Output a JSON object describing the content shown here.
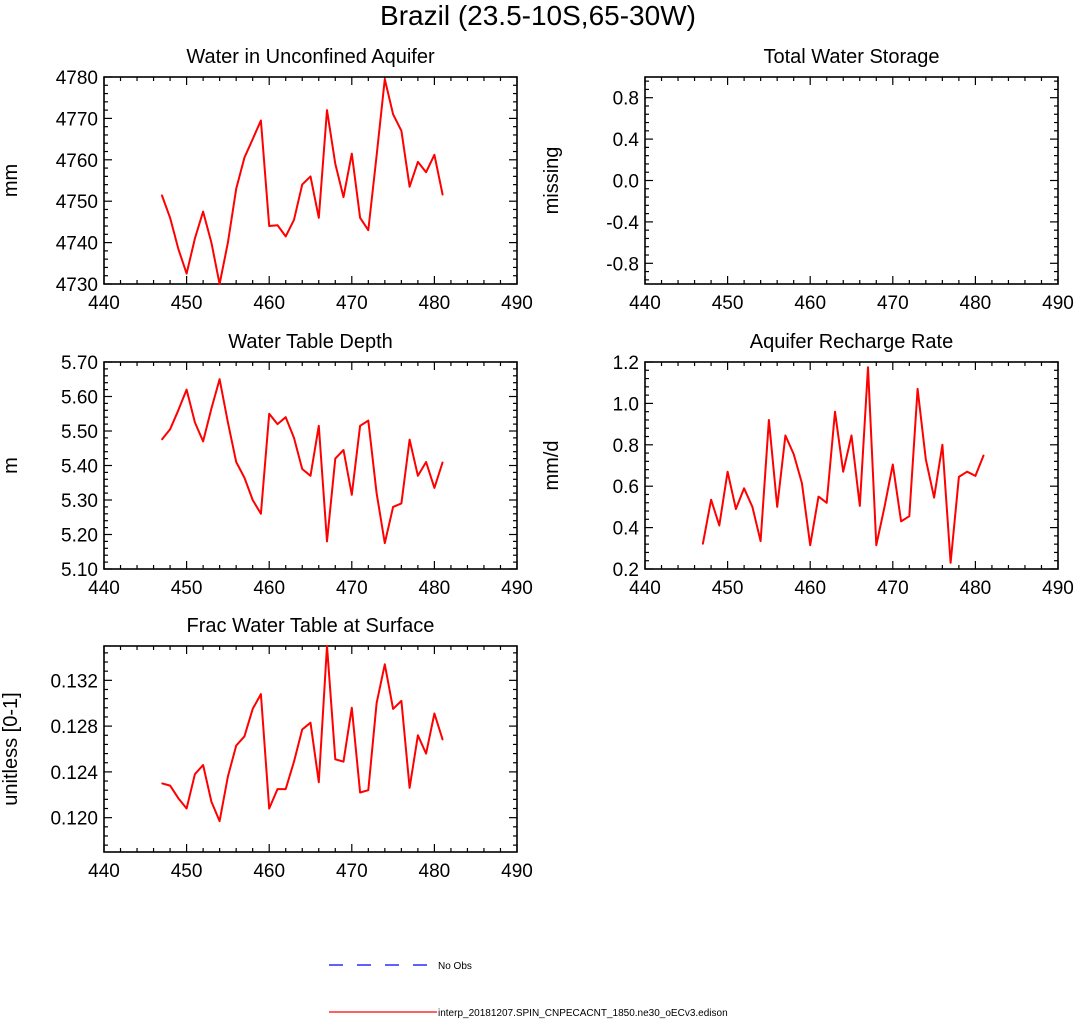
{
  "main_title": "Brazil (23.5-10S,65-30W)",
  "colors": {
    "model": "#ff0000",
    "obs": "#0000ff",
    "axis": "#000000"
  },
  "legend": [
    {
      "label": "No Obs",
      "style": "dashed",
      "color": "#0000ff"
    },
    {
      "label": "interp_20181207.SPIN_CNPECACNT_1850.ne30_oECv3.edison",
      "style": "solid",
      "color": "#ff0000"
    }
  ],
  "chart_data": [
    {
      "type": "line",
      "title": "Water in Unconfined Aquifer",
      "ylabel": "mm",
      "xlim": [
        440,
        490
      ],
      "ylim": [
        4730,
        4780
      ],
      "xticks": [
        440,
        450,
        460,
        470,
        480,
        490
      ],
      "yticks": [
        4730,
        4740,
        4750,
        4760,
        4770,
        4780
      ],
      "ytick_labels": [
        "4730",
        "4740",
        "4750",
        "4760",
        "4770",
        "4780"
      ],
      "x": [
        447,
        448,
        449,
        450,
        451,
        452,
        453,
        454,
        455,
        456,
        457,
        458,
        459,
        460,
        461,
        462,
        463,
        464,
        465,
        466,
        467,
        468,
        469,
        470,
        471,
        472,
        473,
        474,
        475,
        476,
        477,
        478,
        479,
        480,
        481
      ],
      "series": [
        {
          "name": "interp_20181207.SPIN_CNPECACNT_1850.ne30_oECv3.edison",
          "values": [
            4751.5,
            4746,
            4738.5,
            4732.5,
            4741,
            4747.5,
            4740,
            4730,
            4740,
            4753,
            4760.5,
            4765,
            4769.5,
            4744,
            4744.2,
            4741.5,
            4745.5,
            4754,
            4756,
            4746,
            4772,
            4759,
            4751,
            4761.5,
            4746,
            4743,
            4761,
            4779.5,
            4771,
            4767,
            4753.5,
            4759.5,
            4757,
            4761.2,
            4751.5
          ]
        }
      ]
    },
    {
      "type": "line",
      "title": "Total Water Storage",
      "ylabel": "missing",
      "xlim": [
        440,
        490
      ],
      "ylim": [
        -1,
        1
      ],
      "xticks": [
        440,
        450,
        460,
        470,
        480,
        490
      ],
      "yticks": [
        -0.8,
        -0.4,
        0,
        0.4,
        0.8
      ],
      "ytick_labels": [
        "-0.8",
        "-0.4",
        "0.0",
        "0.4",
        "0.8"
      ],
      "x": [],
      "series": []
    },
    {
      "type": "line",
      "title": "Water Table Depth",
      "ylabel": "m",
      "xlim": [
        440,
        490
      ],
      "ylim": [
        5.1,
        5.7
      ],
      "xticks": [
        440,
        450,
        460,
        470,
        480,
        490
      ],
      "yticks": [
        5.1,
        5.2,
        5.3,
        5.4,
        5.5,
        5.6,
        5.7
      ],
      "ytick_labels": [
        "5.10",
        "5.20",
        "5.30",
        "5.40",
        "5.50",
        "5.60",
        "5.70"
      ],
      "x": [
        447,
        448,
        449,
        450,
        451,
        452,
        453,
        454,
        455,
        456,
        457,
        458,
        459,
        460,
        461,
        462,
        463,
        464,
        465,
        466,
        467,
        468,
        469,
        470,
        471,
        472,
        473,
        474,
        475,
        476,
        477,
        478,
        479,
        480,
        481
      ],
      "series": [
        {
          "name": "interp_20181207.SPIN_CNPECACNT_1850.ne30_oECv3.edison",
          "values": [
            5.475,
            5.505,
            5.56,
            5.62,
            5.525,
            5.47,
            5.565,
            5.65,
            5.525,
            5.41,
            5.365,
            5.3,
            5.26,
            5.55,
            5.52,
            5.54,
            5.48,
            5.39,
            5.37,
            5.515,
            5.18,
            5.42,
            5.445,
            5.315,
            5.515,
            5.53,
            5.32,
            5.175,
            5.28,
            5.29,
            5.475,
            5.37,
            5.41,
            5.335,
            5.41
          ]
        }
      ]
    },
    {
      "type": "line",
      "title": "Aquifer Recharge Rate",
      "ylabel": "mm/d",
      "xlim": [
        440,
        490
      ],
      "ylim": [
        0.2,
        1.2
      ],
      "xticks": [
        440,
        450,
        460,
        470,
        480,
        490
      ],
      "yticks": [
        0.2,
        0.4,
        0.6,
        0.8,
        1.0,
        1.2
      ],
      "ytick_labels": [
        "0.2",
        "0.4",
        "0.6",
        "0.8",
        "1.0",
        "1.2"
      ],
      "x": [
        447,
        448,
        449,
        450,
        451,
        452,
        453,
        454,
        455,
        456,
        457,
        458,
        459,
        460,
        461,
        462,
        463,
        464,
        465,
        466,
        467,
        468,
        469,
        470,
        471,
        472,
        473,
        474,
        475,
        476,
        477,
        478,
        479,
        480,
        481
      ],
      "series": [
        {
          "name": "interp_20181207.SPIN_CNPECACNT_1850.ne30_oECv3.edison",
          "values": [
            0.32,
            0.535,
            0.41,
            0.67,
            0.49,
            0.59,
            0.5,
            0.335,
            0.92,
            0.5,
            0.845,
            0.755,
            0.615,
            0.315,
            0.55,
            0.52,
            0.96,
            0.67,
            0.845,
            0.505,
            1.175,
            0.315,
            0.5,
            0.705,
            0.43,
            0.455,
            1.07,
            0.73,
            0.545,
            0.8,
            0.23,
            0.645,
            0.67,
            0.65,
            0.75
          ]
        }
      ]
    },
    {
      "type": "line",
      "title": "Frac Water Table at Surface",
      "ylabel": "unitless [0-1]",
      "xlim": [
        440,
        490
      ],
      "ylim": [
        0.117,
        0.135
      ],
      "xticks": [
        440,
        450,
        460,
        470,
        480,
        490
      ],
      "yticks": [
        0.12,
        0.124,
        0.128,
        0.132
      ],
      "ytick_labels": [
        "0.120",
        "0.124",
        "0.128",
        "0.132"
      ],
      "x": [
        447,
        448,
        449,
        450,
        451,
        452,
        453,
        454,
        455,
        456,
        457,
        458,
        459,
        460,
        461,
        462,
        463,
        464,
        465,
        466,
        467,
        468,
        469,
        470,
        471,
        472,
        473,
        474,
        475,
        476,
        477,
        478,
        479,
        480,
        481
      ],
      "series": [
        {
          "name": "interp_20181207.SPIN_CNPECACNT_1850.ne30_oECv3.edison",
          "values": [
            0.123,
            0.1228,
            0.1217,
            0.1208,
            0.1238,
            0.1246,
            0.1214,
            0.1197,
            0.1236,
            0.1263,
            0.1271,
            0.1295,
            0.1308,
            0.1208,
            0.1225,
            0.1225,
            0.1249,
            0.1277,
            0.1283,
            0.1231,
            0.135,
            0.1251,
            0.1249,
            0.1296,
            0.1222,
            0.1224,
            0.13,
            0.1334,
            0.1295,
            0.1302,
            0.1226,
            0.1272,
            0.1256,
            0.1291,
            0.1268
          ]
        }
      ]
    }
  ]
}
